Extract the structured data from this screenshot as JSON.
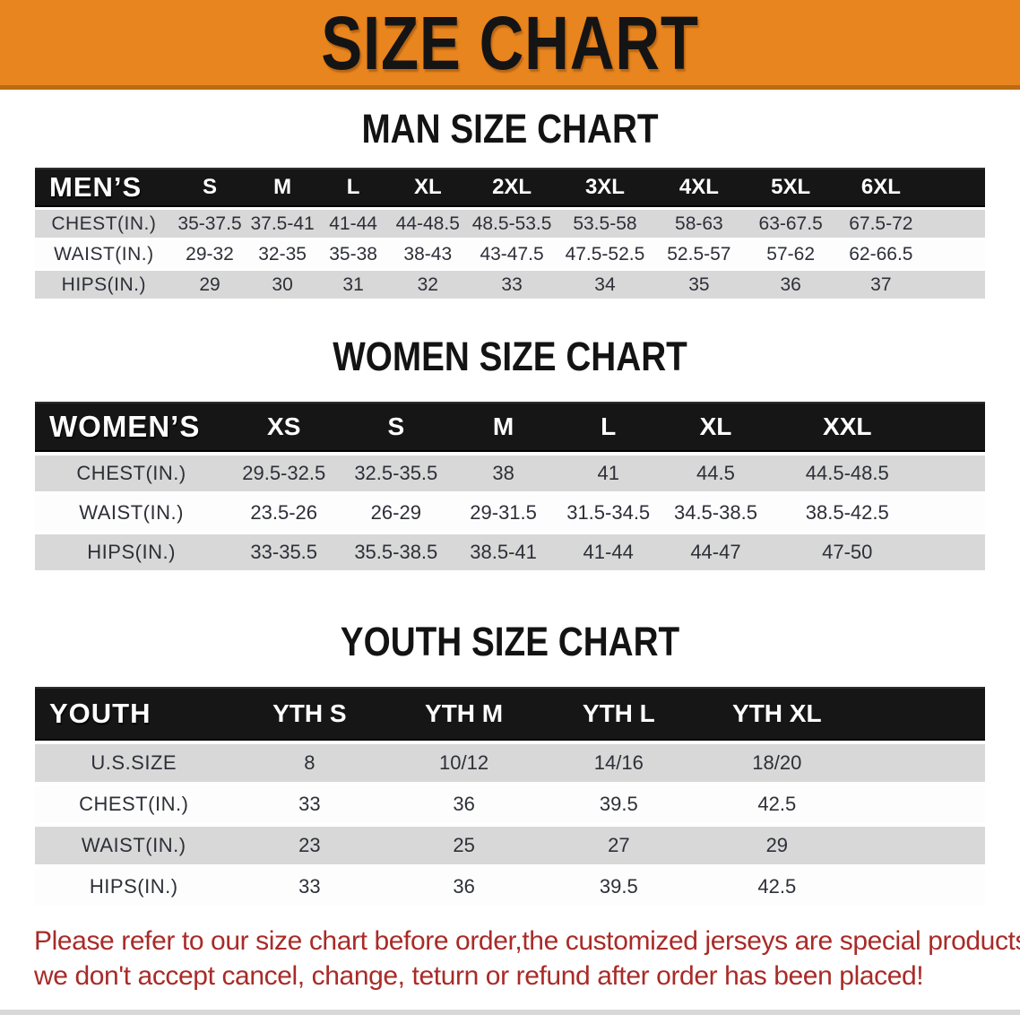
{
  "banner": {
    "title": "SIZE CHART",
    "bg_color": "#E8851E",
    "border_color": "#BB6B12"
  },
  "sections": [
    {
      "id": "men",
      "heading": "MAN SIZE CHART",
      "table": {
        "label": "MEN’S",
        "sizes": [
          "S",
          "M",
          "L",
          "XL",
          "2XL",
          "3XL",
          "4XL",
          "5XL",
          "6XL"
        ],
        "rows": [
          {
            "label": "CHEST(IN.)",
            "values": [
              "35-37.5",
              "37.5-41",
              "41-44",
              "44-48.5",
              "48.5-53.5",
              "53.5-58",
              "58-63",
              "63-67.5",
              "67.5-72"
            ]
          },
          {
            "label": "WAIST(IN.)",
            "values": [
              "29-32",
              "32-35",
              "35-38",
              "38-43",
              "43-47.5",
              "47.5-52.5",
              "52.5-57",
              "57-62",
              "62-66.5"
            ]
          },
          {
            "label": "HIPS(IN.)",
            "values": [
              "29",
              "30",
              "31",
              "32",
              "33",
              "34",
              "35",
              "36",
              "37"
            ]
          }
        ]
      }
    },
    {
      "id": "women",
      "heading": "WOMEN SIZE CHART",
      "table": {
        "label": "WOMEN’S",
        "sizes": [
          "XS",
          "S",
          "M",
          "L",
          "XL",
          "XXL"
        ],
        "rows": [
          {
            "label": "CHEST(IN.)",
            "values": [
              "29.5-32.5",
              "32.5-35.5",
              "38",
              "41",
              "44.5",
              "44.5-48.5"
            ]
          },
          {
            "label": "WAIST(IN.)",
            "values": [
              "23.5-26",
              "26-29",
              "29-31.5",
              "31.5-34.5",
              "34.5-38.5",
              "38.5-42.5"
            ]
          },
          {
            "label": "HIPS(IN.)",
            "values": [
              "33-35.5",
              "35.5-38.5",
              "38.5-41",
              "41-44",
              "44-47",
              "47-50"
            ]
          }
        ]
      }
    },
    {
      "id": "youth",
      "heading": "YOUTH SIZE CHART",
      "table": {
        "label": "YOUTH",
        "sizes": [
          "YTH S",
          "YTH M",
          "YTH L",
          "YTH XL"
        ],
        "rows": [
          {
            "label": "U.S.SIZE",
            "values": [
              "8",
              "10/12",
              "14/16",
              "18/20"
            ]
          },
          {
            "label": "CHEST(IN.)",
            "values": [
              "33",
              "36",
              "39.5",
              "42.5"
            ]
          },
          {
            "label": "WAIST(IN.)",
            "values": [
              "23",
              "25",
              "27",
              "29"
            ]
          },
          {
            "label": "HIPS(IN.)",
            "values": [
              "33",
              "36",
              "39.5",
              "42.5"
            ]
          }
        ]
      }
    }
  ],
  "disclaimer": {
    "line1": "Please refer to our size chart before order,the customized jerseys are special products,",
    "line2": "we don't accept cancel, change, teturn or refund after order has been placed!",
    "text_color": "#A82B28"
  },
  "colors": {
    "header_bar": "#161616",
    "row_gray": "#D8D8D8",
    "row_white": "#FDFDFD",
    "data_text": "#2E3038"
  }
}
